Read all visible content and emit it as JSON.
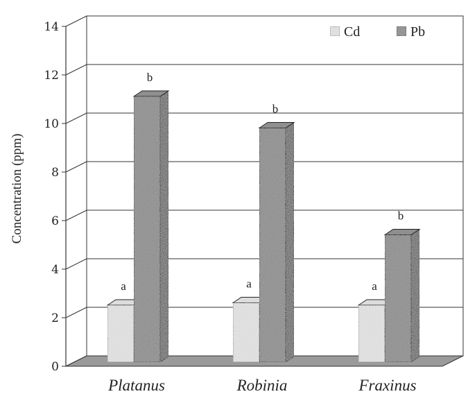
{
  "chart_data": {
    "type": "bar",
    "title": "",
    "xlabel": "",
    "ylabel": "Concentration (ppm)",
    "ylim": [
      0,
      14
    ],
    "yticks": [
      "0",
      "2",
      "4",
      "6",
      "8",
      "10",
      "12",
      "14"
    ],
    "categories": [
      "Platanus",
      "Robinia",
      "Fraxinus"
    ],
    "series": [
      {
        "name": "Cd",
        "values": [
          2.4,
          2.5,
          2.4
        ],
        "letters": [
          "a",
          "a",
          "a"
        ],
        "color": "#dcdcdc"
      },
      {
        "name": "Pb",
        "values": [
          11.0,
          9.7,
          5.3
        ],
        "letters": [
          "b",
          "b",
          "b"
        ],
        "color": "#8f8f8f"
      }
    ],
    "grid": true,
    "legend": "top-right"
  }
}
